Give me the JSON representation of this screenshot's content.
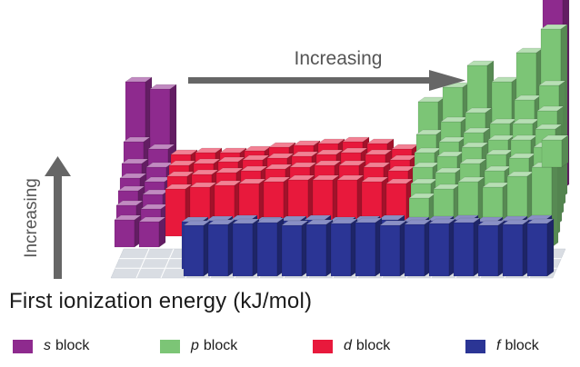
{
  "arrows": {
    "horizontal_label": "Increasing",
    "vertical_label": "Increasing"
  },
  "title": "First ionization energy (kJ/mol)",
  "legend": [
    {
      "letter": "s",
      "word": "block",
      "color": "#8e2a8e"
    },
    {
      "letter": "p",
      "word": "block",
      "color": "#7cc576"
    },
    {
      "letter": "d",
      "word": "block",
      "color": "#e8193c"
    },
    {
      "letter": "f",
      "word": "block",
      "color": "#2b3595"
    }
  ],
  "colors": {
    "s_block": "#8e2a8e",
    "p_block": "#7cc576",
    "d_block": "#e8193c",
    "f_block": "#2b3595",
    "arrow": "#666666",
    "base_grid": "#d9dde3"
  }
}
